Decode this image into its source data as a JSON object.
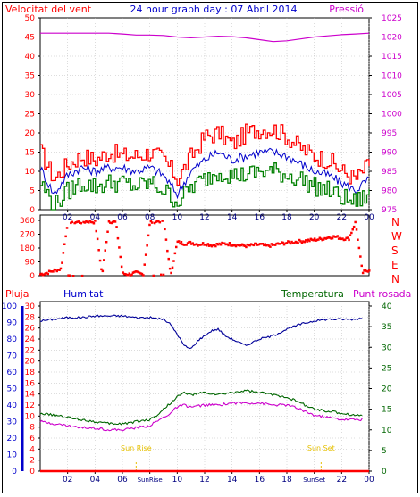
{
  "header": {
    "left_label": "Velocitat del vent",
    "title": "24 hour graph day : 07 Abril 2014",
    "right_label": "Pressió"
  },
  "colors": {
    "wind_max": "#ff0000",
    "wind_avg": "#0000cc",
    "wind_min": "#008000",
    "pressure": "#cc00cc",
    "direction": "#ff0000",
    "rain": "#ff0000",
    "humidity": "#000099",
    "temperature": "#006600",
    "dewpoint": "#cc00cc",
    "sun_marker": "#e6c000",
    "grid": "#000000"
  },
  "x_ticks": [
    "02",
    "04",
    "06",
    "08",
    "10",
    "12",
    "14",
    "16",
    "18",
    "20",
    "22",
    "00"
  ],
  "x_ticks_bottom": [
    "02",
    "04",
    "06",
    "SunRise",
    "10",
    "12",
    "14",
    "16",
    "18",
    "SunSet",
    "22",
    "00"
  ],
  "direction_labels": [
    "N",
    "W",
    "S",
    "E",
    "N"
  ],
  "bottom_legend": {
    "rain": "Pluja",
    "humidity": "Humitat",
    "temperature": "Temperatura",
    "dewpoint": "Punt rosada"
  },
  "sun_labels": {
    "rise": "Sun Rise",
    "set": "Sun Set"
  },
  "chart_data": [
    {
      "type": "line",
      "title": "24 hour graph day : 07 Abril 2014",
      "x_range": [
        0,
        24
      ],
      "ylim_left": [
        0,
        50
      ],
      "ylim_right": [
        975,
        1025
      ],
      "y_ticks_left": [
        0,
        5,
        10,
        15,
        20,
        25,
        30,
        35,
        40,
        45,
        50
      ],
      "y_ticks_right": [
        975,
        980,
        985,
        990,
        995,
        1000,
        1005,
        1010,
        1015,
        1020,
        1025
      ],
      "series": [
        {
          "name": "Velocitat del vent",
          "axis": "left",
          "x": [
            0,
            1,
            2,
            3,
            4,
            5,
            6,
            7,
            8,
            9,
            10,
            11,
            12,
            13,
            14,
            15,
            16,
            17,
            18,
            19,
            20,
            21,
            22,
            23,
            24
          ],
          "values": [
            15,
            8,
            12,
            14,
            13,
            15,
            14,
            14,
            15,
            13,
            8,
            14,
            19,
            20,
            17,
            20,
            21,
            21,
            19,
            16,
            14,
            13,
            10,
            8,
            12
          ]
        },
        {
          "name": "",
          "axis": "left",
          "x": [
            0,
            1,
            2,
            3,
            4,
            5,
            6,
            7,
            8,
            9,
            10,
            11,
            12,
            13,
            14,
            15,
            16,
            17,
            18,
            19,
            20,
            21,
            22,
            23,
            24
          ],
          "values": [
            11,
            4,
            9,
            11,
            10,
            11,
            11,
            10,
            11,
            9,
            4,
            10,
            13,
            15,
            13,
            14,
            15,
            15,
            14,
            12,
            10,
            9,
            7,
            5,
            8
          ]
        },
        {
          "name": "",
          "axis": "left",
          "x": [
            0,
            1,
            2,
            3,
            4,
            5,
            6,
            7,
            8,
            9,
            10,
            11,
            12,
            13,
            14,
            15,
            16,
            17,
            18,
            19,
            20,
            21,
            22,
            23,
            24
          ],
          "values": [
            7,
            1,
            5,
            7,
            6,
            7,
            7,
            6,
            7,
            5,
            2,
            6,
            8,
            10,
            9,
            9,
            10,
            10,
            9,
            8,
            6,
            5,
            3,
            2,
            4
          ]
        },
        {
          "name": "Pressió",
          "axis": "right",
          "x": [
            0,
            1,
            2,
            3,
            4,
            5,
            6,
            7,
            8,
            9,
            10,
            11,
            12,
            13,
            14,
            15,
            16,
            17,
            18,
            19,
            20,
            21,
            22,
            23,
            24
          ],
          "values": [
            1021,
            1021,
            1021,
            1021,
            1021,
            1021,
            1020.8,
            1020.5,
            1020.5,
            1020.4,
            1020,
            1019.8,
            1020,
            1020.2,
            1020.1,
            1019.8,
            1019.3,
            1018.8,
            1019,
            1019.5,
            1020,
            1020.3,
            1020.6,
            1020.8,
            1021
          ]
        }
      ]
    },
    {
      "type": "scatter",
      "x_range": [
        0,
        24
      ],
      "ylim": [
        0,
        360
      ],
      "y_ticks": [
        0,
        90,
        180,
        270,
        360
      ],
      "series": [
        {
          "name": "",
          "x": [
            0,
            0.5,
            1,
            1.5,
            2,
            2.5,
            3,
            3.5,
            4,
            4.5,
            5,
            5.5,
            6,
            6.5,
            7,
            7.5,
            8,
            8.5,
            9,
            9.5,
            10,
            10.5,
            11,
            11.5,
            12,
            12.5,
            13,
            13.5,
            14,
            14.5,
            15,
            15.5,
            16,
            16.5,
            17,
            17.5,
            18,
            18.5,
            19,
            19.5,
            20,
            20.5,
            21,
            21.5,
            22,
            22.5,
            23,
            23.5,
            24
          ],
          "values": [
            10,
            20,
            35,
            45,
            355,
            350,
            350,
            355,
            350,
            5,
            355,
            350,
            15,
            10,
            20,
            10,
            350,
            355,
            360,
            5,
            220,
            210,
            215,
            205,
            210,
            200,
            205,
            210,
            205,
            200,
            195,
            200,
            205,
            195,
            200,
            210,
            215,
            220,
            225,
            230,
            235,
            240,
            250,
            255,
            245,
            240,
            350,
            20,
            40
          ]
        }
      ]
    },
    {
      "type": "line",
      "x_range": [
        0,
        24
      ],
      "ylim_left": [
        0,
        30
      ],
      "y_ticks_left": [
        0,
        2,
        4,
        6,
        8,
        10,
        12,
        14,
        16,
        18,
        20,
        22,
        24,
        26,
        28,
        30
      ],
      "ylim_humidity": [
        0,
        100
      ],
      "y_ticks_humidity": [
        0,
        10,
        20,
        30,
        40,
        50,
        60,
        70,
        80,
        90,
        100
      ],
      "ylim_right": [
        0,
        40
      ],
      "y_ticks_right": [
        0,
        5,
        10,
        15,
        20,
        25,
        30,
        35,
        40
      ],
      "sun_rise_hour": 7.0,
      "sun_set_hour": 20.5,
      "series": [
        {
          "name": "Pluja",
          "axis": "left",
          "x": [
            0,
            24
          ],
          "values": [
            0,
            0
          ]
        },
        {
          "name": "Humitat",
          "axis": "humidity",
          "x": [
            0,
            1,
            2,
            3,
            4,
            5,
            6,
            7,
            8,
            9,
            9.5,
            10,
            10.5,
            11,
            11.5,
            12,
            12.5,
            13,
            13.5,
            14,
            14.5,
            15,
            15.5,
            16,
            16.5,
            17,
            17.5,
            18,
            19,
            20,
            21,
            22,
            23,
            23.5
          ],
          "values": [
            91,
            92,
            93,
            93,
            94,
            94,
            94,
            93,
            93,
            92,
            89,
            83,
            76,
            74,
            79,
            82,
            85,
            86,
            82,
            80,
            78,
            76,
            78,
            80,
            81,
            82,
            84,
            86,
            89,
            91,
            92,
            92,
            92,
            93
          ]
        },
        {
          "name": "Temperatura",
          "axis": "right",
          "x": [
            0,
            1,
            2,
            3,
            4,
            5,
            6,
            7,
            8,
            8.5,
            9,
            9.5,
            10,
            10.5,
            11,
            12,
            13,
            14,
            15,
            16,
            17,
            18,
            19,
            20,
            21,
            22,
            23,
            23.5
          ],
          "values": [
            14,
            13.5,
            13,
            12.5,
            12,
            11.5,
            11.5,
            12,
            12.5,
            13.5,
            15,
            16.5,
            18,
            19,
            18.5,
            19,
            18.5,
            19,
            19.5,
            19,
            18.5,
            18,
            16.5,
            15,
            14.5,
            14,
            13.5,
            13.5
          ]
        },
        {
          "name": "Punt rosada",
          "axis": "right",
          "x": [
            0,
            1,
            2,
            3,
            4,
            5,
            6,
            7,
            8,
            8.5,
            9,
            9.5,
            10,
            10.5,
            11,
            12,
            13,
            14,
            15,
            16,
            17,
            18,
            19,
            20,
            21,
            22,
            23,
            23.5
          ],
          "values": [
            12,
            11.5,
            11,
            10.5,
            10.5,
            10,
            10,
            10.5,
            11,
            12,
            13,
            14,
            15.5,
            16,
            15.5,
            16,
            16,
            16.5,
            16.5,
            16.5,
            16,
            16,
            15,
            13.5,
            13,
            12.5,
            12.5,
            12.5
          ]
        }
      ]
    }
  ]
}
